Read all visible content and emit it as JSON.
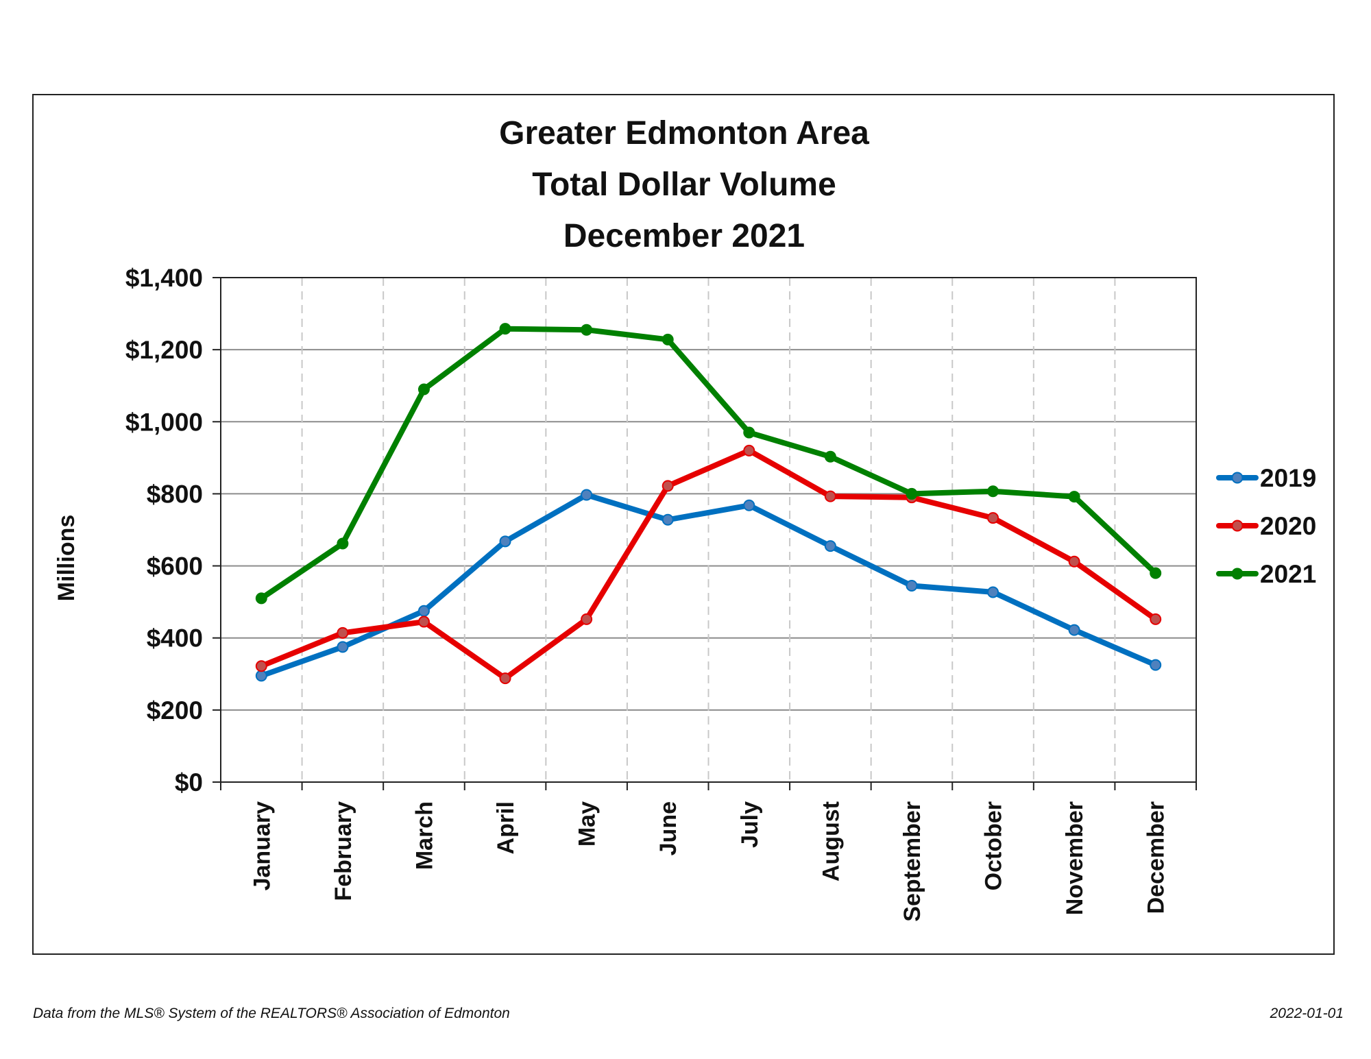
{
  "footer": {
    "source": "Data from the MLS® System of the REALTORS® Association of Edmonton",
    "date": "2022-01-01"
  },
  "chart_data": {
    "type": "line",
    "title_lines": [
      "Greater Edmonton Area",
      "Total Dollar Volume",
      "December 2021"
    ],
    "xlabel": "",
    "ylabel": "Millions",
    "ylim": [
      0,
      1400
    ],
    "yticks": [
      0,
      200,
      400,
      600,
      800,
      1000,
      1200,
      1400
    ],
    "ytick_labels": [
      "$0",
      "$200",
      "$400",
      "$600",
      "$800",
      "$1,000",
      "$1,200",
      "$1,400"
    ],
    "categories": [
      "January",
      "February",
      "March",
      "April",
      "May",
      "June",
      "July",
      "August",
      "September",
      "October",
      "November",
      "December"
    ],
    "grid": {
      "horizontal": "solid",
      "vertical": "dashed"
    },
    "legend_position": "right",
    "series": [
      {
        "name": "2019",
        "color": "#0070C0",
        "marker_color": "#4F81BD",
        "values": [
          295,
          375,
          475,
          668,
          797,
          728,
          768,
          655,
          545,
          527,
          422,
          325
        ]
      },
      {
        "name": "2020",
        "color": "#E60000",
        "marker_color": "#C0504D",
        "values": [
          322,
          414,
          445,
          288,
          452,
          822,
          920,
          793,
          790,
          733,
          612,
          452
        ]
      },
      {
        "name": "2021",
        "color": "#008000",
        "marker_color": "#008000",
        "values": [
          510,
          662,
          1090,
          1258,
          1255,
          1228,
          970,
          903,
          800,
          807,
          792,
          580
        ]
      }
    ]
  }
}
